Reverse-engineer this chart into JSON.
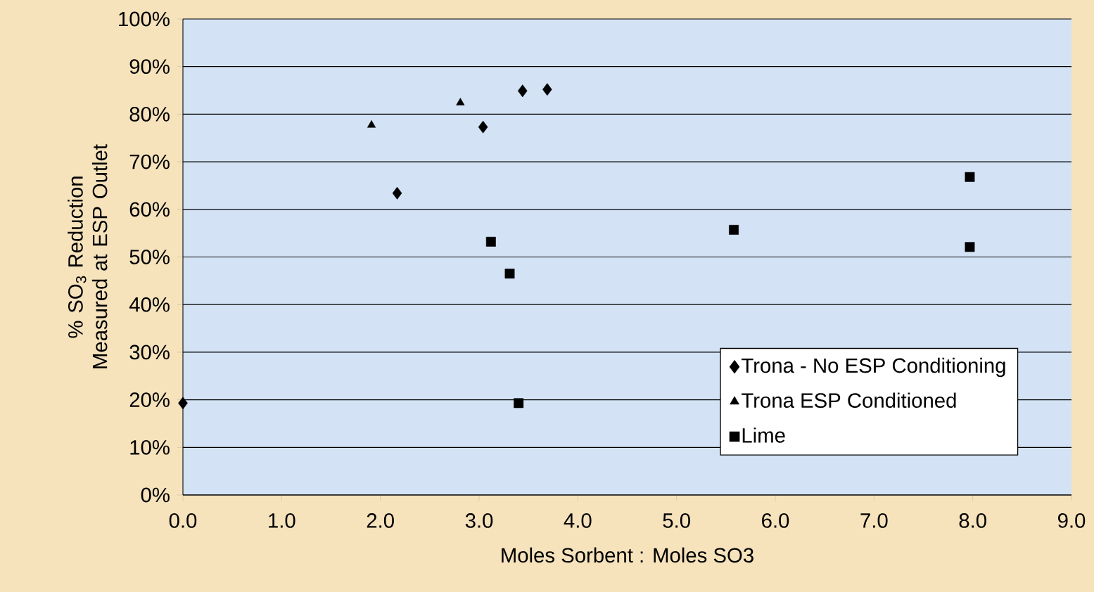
{
  "chart_data": {
    "type": "scatter",
    "xlabel": "Moles Sorbent : Moles SO3",
    "ylabel": "% SO$_{3}$ Reduction Measured at ESP Outlet",
    "xlim": [
      0,
      9
    ],
    "ylim": [
      0,
      100
    ],
    "xticks": [
      {
        "value": 0,
        "label": "0.0"
      },
      {
        "value": 1,
        "label": "1.0"
      },
      {
        "value": 2,
        "label": "2.0"
      },
      {
        "value": 3,
        "label": "3.0"
      },
      {
        "value": 4,
        "label": "4.0"
      },
      {
        "value": 5,
        "label": "5.0"
      },
      {
        "value": 6,
        "label": "6.0"
      },
      {
        "value": 7,
        "label": "7.0"
      },
      {
        "value": 8,
        "label": "8.0"
      },
      {
        "value": 9,
        "label": "9.0"
      }
    ],
    "yticks": [
      {
        "value": 0,
        "label": "0%"
      },
      {
        "value": 10,
        "label": "10%"
      },
      {
        "value": 20,
        "label": "20%"
      },
      {
        "value": 30,
        "label": "30%"
      },
      {
        "value": 40,
        "label": "40%"
      },
      {
        "value": 50,
        "label": "50%"
      },
      {
        "value": 60,
        "label": "60%"
      },
      {
        "value": 70,
        "label": "70%"
      },
      {
        "value": 80,
        "label": "80%"
      },
      {
        "value": 90,
        "label": "90%"
      },
      {
        "value": 100,
        "label": "100%"
      }
    ],
    "grid": "y",
    "legend": "bottom right",
    "series": [
      {
        "name": "Trona - No ESP Conditioning",
        "color": "#000000",
        "marker": "diamond",
        "x": [
          0,
          2.17,
          3.04,
          3.44,
          3.69
        ],
        "values": [
          19.3,
          63.4,
          77.3,
          84.9,
          85.2
        ]
      },
      {
        "name": "Trona ESP Conditioned",
        "color": "#000000",
        "marker": "triangle",
        "x": [
          1.91,
          2.81
        ],
        "values": [
          77.7,
          82.4
        ]
      },
      {
        "name": "Lime",
        "color": "#000000",
        "marker": "square",
        "x": [
          3.12,
          3.31,
          3.4,
          5.58,
          7.97,
          7.97
        ],
        "values": [
          53.2,
          46.5,
          19.3,
          55.7,
          66.8,
          52.1
        ]
      }
    ]
  }
}
